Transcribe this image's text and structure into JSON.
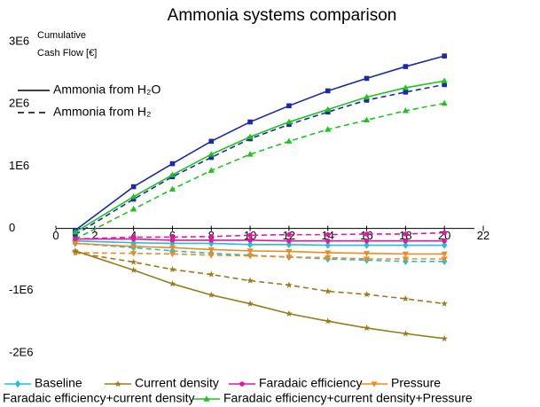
{
  "chart_data": {
    "type": "line",
    "title": "Ammonia systems comparison",
    "y_label": [
      "Cumulative",
      "Cash Flow [€]"
    ],
    "line_styles": [
      {
        "label": "Ammonia from H₂O",
        "dash": "solid"
      },
      {
        "label": "Ammonia from H₂",
        "dash": "dashed"
      }
    ],
    "x": [
      1,
      4,
      6,
      8,
      10,
      12,
      14,
      16,
      18,
      20
    ],
    "xlim": [
      0,
      22
    ],
    "xticks": [
      0,
      2,
      4,
      6,
      8,
      10,
      12,
      14,
      16,
      18,
      20,
      22
    ],
    "ylim": [
      -2000000,
      3000000
    ],
    "yticks": [
      {
        "value": -2000000,
        "label": "-2E6"
      },
      {
        "value": -1000000,
        "label": "-1E6"
      },
      0,
      {
        "value": 1000000,
        "label": "1E6"
      },
      {
        "value": 2000000,
        "label": "2E6"
      },
      {
        "value": 3000000,
        "label": "3E6"
      }
    ],
    "series": [
      {
        "name": "Baseline",
        "color": "#1ec0d8",
        "marker": "diamond",
        "values_h2o": [
          -200000,
          -230000,
          -240000,
          -240000,
          -260000,
          -260000,
          -270000,
          -270000,
          -270000,
          -270000
        ],
        "values_h2": [
          -240000,
          -310000,
          -360000,
          -400000,
          -430000,
          -460000,
          -490000,
          -510000,
          -530000,
          -530000
        ]
      },
      {
        "name": "Current density",
        "color": "#9a7b1a",
        "marker": "star",
        "values_h2o": [
          -360000,
          -670000,
          -890000,
          -1070000,
          -1210000,
          -1370000,
          -1490000,
          -1600000,
          -1690000,
          -1770000
        ],
        "values_h2": [
          -390000,
          -540000,
          -660000,
          -740000,
          -840000,
          -910000,
          -1010000,
          -1060000,
          -1130000,
          -1210000
        ]
      },
      {
        "name": "Faradaic efficiency",
        "color": "#e0199e",
        "marker": "circle",
        "values_h2o": [
          -170000,
          -170000,
          -190000,
          -190000,
          -190000,
          -200000,
          -200000,
          -200000,
          -200000,
          -200000
        ],
        "values_h2": [
          -170000,
          -140000,
          -140000,
          -130000,
          -110000,
          -100000,
          -100000,
          -90000,
          -90000,
          -70000
        ]
      },
      {
        "name": "Pressure",
        "color": "#f08a1e",
        "marker": "triangle-down",
        "values_h2o": [
          -240000,
          -290000,
          -310000,
          -340000,
          -360000,
          -370000,
          -390000,
          -400000,
          -410000,
          -410000
        ],
        "values_h2": [
          -390000,
          -400000,
          -410000,
          -430000,
          -440000,
          -460000,
          -470000,
          -490000,
          -490000,
          -490000
        ]
      },
      {
        "name": "Faradaic efficiency+current density",
        "color": "#1c2aa8",
        "marker": "square",
        "values_h2o": [
          -30000,
          670000,
          1040000,
          1400000,
          1710000,
          1970000,
          2210000,
          2410000,
          2600000,
          2770000
        ],
        "values_h2": [
          -100000,
          470000,
          830000,
          1140000,
          1440000,
          1670000,
          1870000,
          2060000,
          2190000,
          2310000
        ]
      },
      {
        "name": "Faradaic efficiency+current density+Pressure",
        "color": "#1ec41e",
        "marker": "triangle-up",
        "values_h2o": [
          -60000,
          510000,
          860000,
          1190000,
          1470000,
          1710000,
          1910000,
          2110000,
          2260000,
          2370000
        ],
        "values_h2": [
          -170000,
          310000,
          630000,
          930000,
          1190000,
          1400000,
          1590000,
          1740000,
          1890000,
          2010000
        ]
      }
    ]
  }
}
